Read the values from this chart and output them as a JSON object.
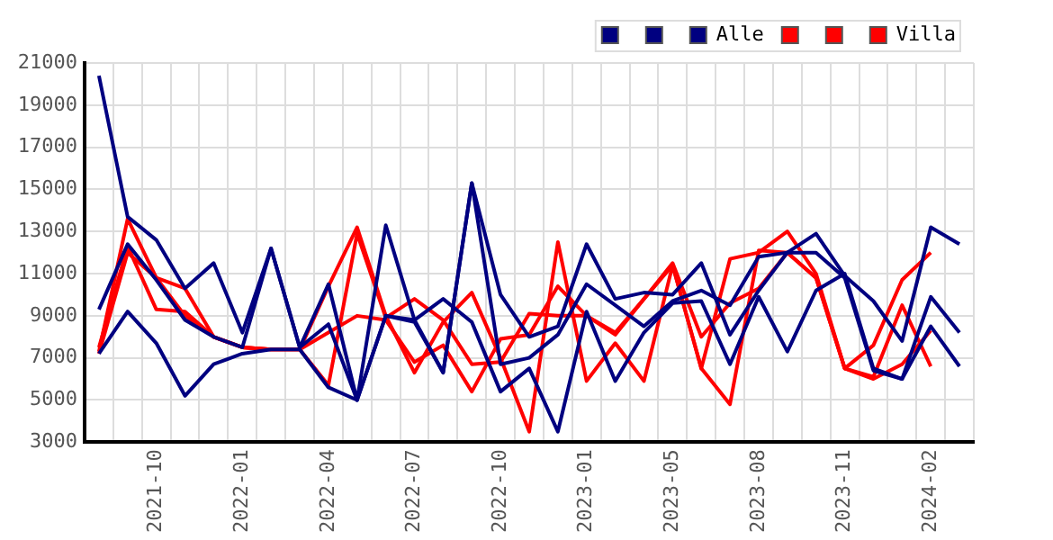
{
  "chart_data": {
    "type": "line",
    "categories": [
      null,
      null,
      "2021-10",
      null,
      null,
      "2022-01",
      null,
      null,
      "2022-04",
      null,
      null,
      "2022-07",
      null,
      null,
      "2022-10",
      null,
      null,
      "2023-01",
      null,
      null,
      "2023-05",
      null,
      null,
      "2023-08",
      null,
      null,
      "2023-11",
      null,
      null,
      "2024-02",
      null
    ],
    "series": [
      {
        "color": "#000080",
        "values": [
          20400,
          13700,
          12600,
          10300,
          11500,
          8200,
          12200,
          7500,
          10500,
          5000,
          13300,
          8800,
          6300,
          15300,
          10000,
          8000,
          8500,
          12400,
          9800,
          10100,
          10000,
          11500,
          8100,
          10200,
          12000,
          12900,
          10900,
          9700,
          7800,
          13200,
          12400
        ]
      },
      {
        "color": "#000080",
        "values": [
          9300,
          12400,
          10700,
          8800,
          8000,
          7500,
          12200,
          7500,
          8600,
          5000,
          9000,
          8700,
          6300,
          15300,
          6700,
          7000,
          8100,
          10500,
          9500,
          8500,
          9700,
          10200,
          9500,
          11800,
          12000,
          12000,
          10800,
          6400,
          6000,
          9900,
          8200
        ]
      },
      {
        "name": "Alle",
        "color": "#000080",
        "values": [
          7200,
          9200,
          7700,
          5200,
          6700,
          7200,
          7400,
          7400,
          5600,
          5000,
          9000,
          8800,
          9800,
          8700,
          5400,
          6500,
          3500,
          9200,
          5900,
          8200,
          9600,
          9700,
          6700,
          9900,
          7300,
          10200,
          11000,
          6500,
          6000,
          8500,
          6600
        ]
      },
      {
        "color": "#ff0000",
        "values": [
          7300,
          13600,
          10800,
          10300,
          8000,
          7500,
          7400,
          7400,
          10400,
          13200,
          9000,
          6300,
          8700,
          10100,
          7000,
          3500,
          12500,
          5900,
          7700,
          5900,
          11400,
          6500,
          11700,
          12000,
          13000,
          11000,
          6500,
          7600,
          10700,
          12000,
          null
        ]
      },
      {
        "color": "#ff0000",
        "values": [
          7500,
          12300,
          9300,
          9200,
          8000,
          7500,
          7400,
          7400,
          8200,
          9000,
          8800,
          6800,
          7600,
          5400,
          7900,
          8100,
          10400,
          9000,
          8100,
          9800,
          11500,
          8000,
          9600,
          10300,
          12000,
          10800,
          6500,
          6100,
          9500,
          6600,
          null
        ]
      },
      {
        "name": "Villa",
        "color": "#ff0000",
        "values": [
          7200,
          12000,
          10800,
          9000,
          8000,
          7500,
          7400,
          7400,
          5700,
          12900,
          8900,
          9800,
          8800,
          6700,
          6800,
          9100,
          9000,
          9000,
          8200,
          9800,
          11400,
          6500,
          4800,
          12100,
          12000,
          10800,
          6500,
          6000,
          6700,
          8300,
          null
        ]
      }
    ],
    "ylim": [
      3000,
      21000
    ],
    "yticks": [
      3000,
      5000,
      7000,
      9000,
      11000,
      13000,
      15000,
      17000,
      19000,
      21000
    ],
    "grid": true,
    "legend": "top right",
    "marker": "none",
    "line_style": "solid"
  }
}
